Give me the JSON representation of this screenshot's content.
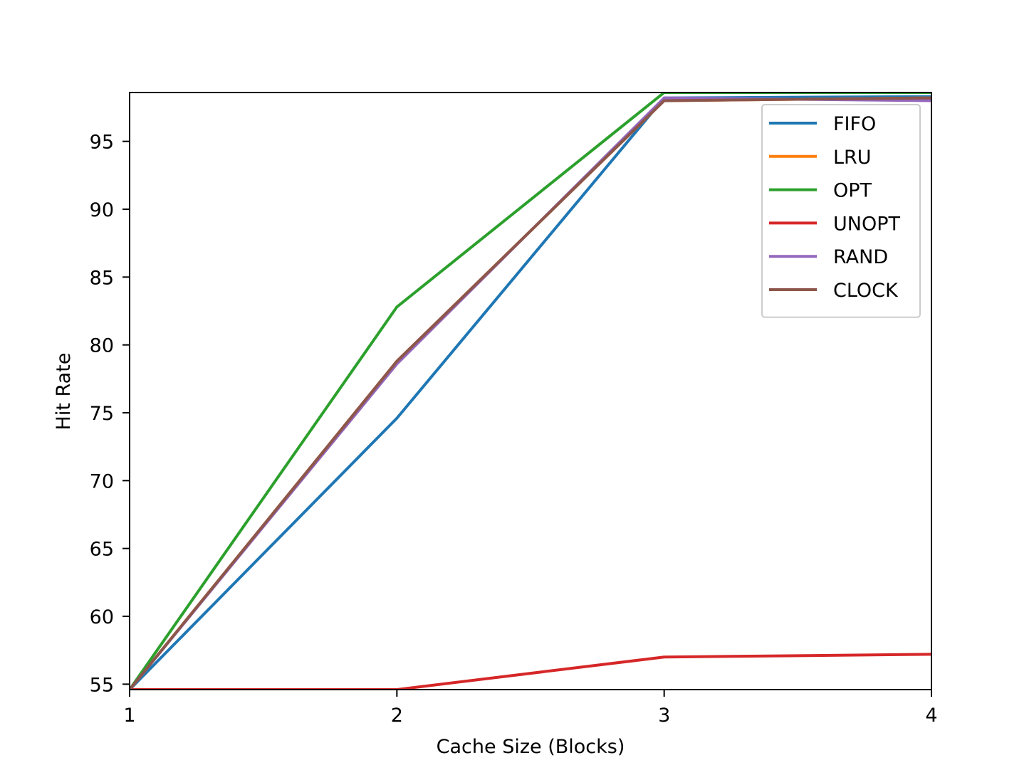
{
  "chart_data": {
    "type": "line",
    "xlabel": "Cache Size (Blocks)",
    "ylabel": "Hit Rate",
    "xlim": [
      1,
      4
    ],
    "ylim": [
      54.6,
      98.6
    ],
    "x": [
      1,
      2,
      3,
      4
    ],
    "xticks": [
      1,
      2,
      3,
      4
    ],
    "yticks": [
      55,
      60,
      65,
      70,
      75,
      80,
      85,
      90,
      95
    ],
    "grid": false,
    "legend_position": "top-right",
    "series": [
      {
        "name": "FIFO",
        "color": "#1f77b4",
        "values": [
          54.6,
          74.6,
          98.2,
          98.3
        ]
      },
      {
        "name": "LRU",
        "color": "#ff7f0e",
        "values": [
          54.6,
          78.8,
          98.0,
          98.2
        ]
      },
      {
        "name": "OPT",
        "color": "#2ca02c",
        "values": [
          54.6,
          82.8,
          98.6,
          98.6
        ]
      },
      {
        "name": "UNOPT",
        "color": "#d62728",
        "values": [
          54.6,
          54.6,
          57.0,
          57.2
        ]
      },
      {
        "name": "RAND",
        "color": "#9467bd",
        "values": [
          54.6,
          78.6,
          98.2,
          98.0
        ]
      },
      {
        "name": "CLOCK",
        "color": "#8c564b",
        "values": [
          54.6,
          78.8,
          98.0,
          98.2
        ]
      }
    ]
  }
}
